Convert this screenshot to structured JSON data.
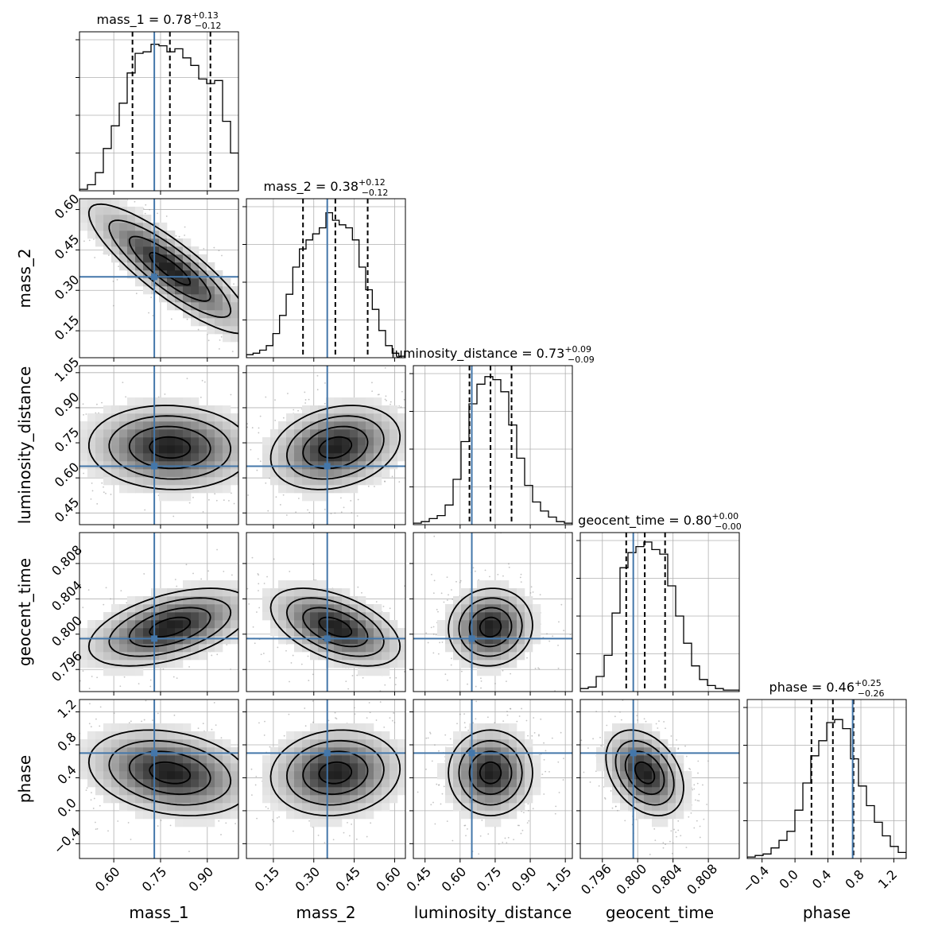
{
  "chart_data": {
    "type": "corner",
    "parameters": [
      "mass_1",
      "mass_2",
      "luminosity_distance",
      "geocent_time",
      "phase"
    ],
    "truth_color": "#4477aa",
    "truths": [
      0.73,
      0.35,
      0.65,
      0.7995,
      0.7
    ],
    "ranges": [
      [
        0.49,
        1.0
      ],
      [
        0.05,
        0.64
      ],
      [
        0.4,
        1.08
      ],
      [
        0.7935,
        0.8115
      ],
      [
        -0.58,
        1.35
      ]
    ],
    "titles": [
      {
        "text": "mass_1 = 0.78",
        "sup": "+0.13",
        "sub": "−0.12"
      },
      {
        "text": "mass_2 = 0.38",
        "sup": "+0.12",
        "sub": "−0.12"
      },
      {
        "text": "luminosity_distance = 0.73",
        "sup": "+0.09",
        "sub": "−0.09"
      },
      {
        "text": "geocent_time = 0.80",
        "sup": "+0.00",
        "sub": "−0.00"
      },
      {
        "text": "phase = 0.46",
        "sup": "+0.25",
        "sub": "−0.26"
      }
    ],
    "quantiles": [
      [
        0.66,
        0.78,
        0.91
      ],
      [
        0.26,
        0.38,
        0.5
      ],
      [
        0.64,
        0.73,
        0.82
      ],
      [
        0.7987,
        0.8008,
        0.8031
      ],
      [
        0.2,
        0.46,
        0.71
      ]
    ],
    "ticks": [
      {
        "values": [
          0.6,
          0.75,
          0.9
        ],
        "labels": [
          "0.60",
          "0.75",
          "0.90"
        ]
      },
      {
        "values": [
          0.15,
          0.3,
          0.45,
          0.6
        ],
        "labels": [
          "0.15",
          "0.30",
          "0.45",
          "0.60"
        ]
      },
      {
        "values": [
          0.45,
          0.6,
          0.75,
          0.9,
          1.05
        ],
        "labels": [
          "0.45",
          "0.60",
          "0.75",
          "0.90",
          "1.05"
        ]
      },
      {
        "values": [
          0.796,
          0.8,
          0.804,
          0.808
        ],
        "labels": [
          "0.796",
          "0.800",
          "0.804",
          "0.808"
        ]
      },
      {
        "values": [
          -0.4,
          0.0,
          0.4,
          0.8,
          1.2
        ],
        "labels": [
          "−0.4",
          "0.0",
          "0.4",
          "0.8",
          "1.2"
        ]
      }
    ],
    "histograms": [
      [
        0.01,
        0.04,
        0.12,
        0.28,
        0.43,
        0.58,
        0.78,
        0.91,
        0.92,
        0.97,
        0.96,
        0.92,
        0.94,
        0.88,
        0.83,
        0.74,
        0.71,
        0.73,
        0.46,
        0.25
      ],
      [
        0.02,
        0.03,
        0.05,
        0.08,
        0.16,
        0.28,
        0.42,
        0.6,
        0.72,
        0.78,
        0.82,
        0.86,
        0.96,
        0.91,
        0.88,
        0.86,
        0.78,
        0.6,
        0.45,
        0.32,
        0.18,
        0.08,
        0.03,
        0.01
      ],
      [
        0.01,
        0.02,
        0.04,
        0.06,
        0.13,
        0.3,
        0.55,
        0.8,
        0.93,
        0.98,
        0.96,
        0.88,
        0.66,
        0.44,
        0.26,
        0.15,
        0.09,
        0.05,
        0.02,
        0.01
      ],
      [
        0.02,
        0.03,
        0.1,
        0.24,
        0.52,
        0.82,
        0.92,
        0.96,
        0.99,
        0.94,
        0.91,
        0.7,
        0.5,
        0.32,
        0.17,
        0.08,
        0.04,
        0.02,
        0.01,
        0.01
      ],
      [
        0.01,
        0.02,
        0.03,
        0.07,
        0.12,
        0.18,
        0.32,
        0.5,
        0.68,
        0.78,
        0.9,
        0.92,
        0.86,
        0.66,
        0.48,
        0.35,
        0.24,
        0.15,
        0.08,
        0.04
      ]
    ],
    "correlations": {
      "1,0": -0.86,
      "2,0": -0.05,
      "2,1": 0.25,
      "3,0": 0.5,
      "3,1": -0.5,
      "3,2": 0.05,
      "4,0": -0.25,
      "4,1": 0.1,
      "4,2": 0.0,
      "4,3": -0.35
    },
    "sigmas": [
      0.13,
      0.12,
      0.09,
      0.0022,
      0.26
    ],
    "medians": [
      0.78,
      0.38,
      0.73,
      0.8008,
      0.46
    ],
    "grid": true,
    "num_samples_shown": 420
  }
}
